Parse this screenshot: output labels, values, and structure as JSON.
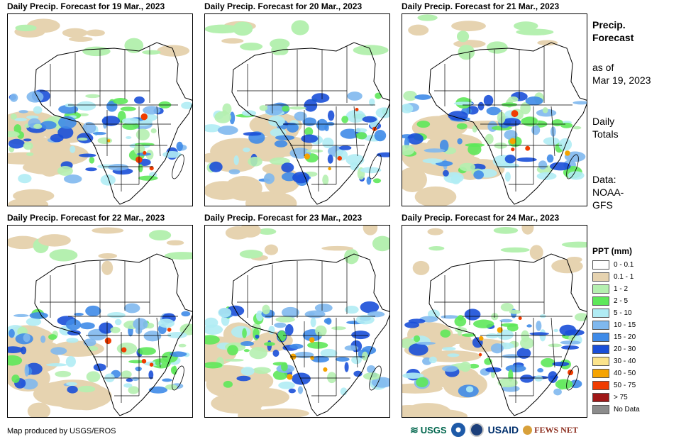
{
  "panels": [
    {
      "title": "Daily Precip. Forecast for 19 Mar., 2023"
    },
    {
      "title": "Daily Precip. Forecast for 20 Mar., 2023"
    },
    {
      "title": "Daily Precip. Forecast for 21 Mar., 2023"
    },
    {
      "title": "Daily Precip. Forecast for 22 Mar., 2023"
    },
    {
      "title": "Daily Precip. Forecast for 23 Mar., 2023"
    },
    {
      "title": "Daily Precip. Forecast for 24 Mar., 2023"
    }
  ],
  "side": {
    "title": "Precip.\nForecast",
    "asof": "as of\nMar 19, 2023",
    "daily": "Daily\nTotals",
    "data": "Data:\nNOAA-\nGFS"
  },
  "legend": {
    "title": "PPT (mm)",
    "items": [
      {
        "label": "0 - 0.1",
        "color": "#ffffff"
      },
      {
        "label": "0.1 - 1",
        "color": "#e6d3b0"
      },
      {
        "label": "1 - 2",
        "color": "#b5f0b0"
      },
      {
        "label": "2 - 5",
        "color": "#5ee85a"
      },
      {
        "label": "5 - 10",
        "color": "#b0ecf4"
      },
      {
        "label": "10 - 15",
        "color": "#7fb8ee"
      },
      {
        "label": "15 - 20",
        "color": "#3f8be8"
      },
      {
        "label": "20 - 30",
        "color": "#1a4fd8"
      },
      {
        "label": "30 - 40",
        "color": "#fbe38a"
      },
      {
        "label": "40 - 50",
        "color": "#f5a300"
      },
      {
        "label": "50 - 75",
        "color": "#f03c00"
      },
      {
        "label": "> 75",
        "color": "#a01818"
      },
      {
        "label": "No Data",
        "color": "#8c8c8c"
      }
    ]
  },
  "credit": "Map produced by USGS/EROS",
  "logos": {
    "usgs": "USGS",
    "usaid": "USAID",
    "fewsnet": "FEWS NET"
  }
}
